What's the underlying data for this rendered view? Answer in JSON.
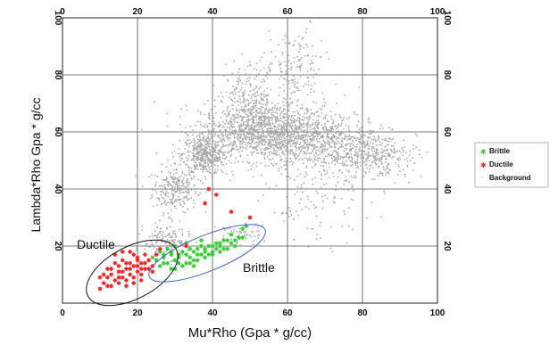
{
  "chart_data": {
    "type": "scatter",
    "xlabel": "Mu*Rho (Gpa * g/cc)",
    "ylabel": "Lambda*Rho Gpa * g/cc",
    "xlim": [
      0,
      100
    ],
    "ylim": [
      0,
      100
    ],
    "x_ticks": [
      "0",
      "20",
      "40",
      "60",
      "80",
      "100"
    ],
    "y_ticks": [
      "20",
      "40",
      "60",
      "80",
      "100"
    ],
    "grid": true,
    "legend_position": "right",
    "colors": {
      "Brittle": "#33cc33",
      "Ductile": "#ee2222",
      "Background": "#aaaaaa"
    },
    "series": [
      {
        "name": "Background",
        "regions": [
          {
            "description_values": [
              30,
              40,
              3.0,
              4.0,
              250
            ]
          },
          {
            "description_values": [
              38,
              52,
              3.0,
              3.5,
              450
            ]
          },
          {
            "description_values": [
              55,
              60,
              9.0,
              5.0,
              1400
            ]
          },
          {
            "description_values": [
              72,
              55,
              9.0,
              5.0,
              600
            ]
          },
          {
            "description_values": [
              84,
              50,
              5.0,
              4.0,
              200
            ]
          },
          {
            "description_values": [
              50,
              72,
              4.0,
              6.0,
              250
            ]
          },
          {
            "description_values": [
              62,
              82,
              4.0,
              7.0,
              150
            ]
          },
          {
            "description_values": [
              28,
              22,
              3.0,
              3.0,
              150
            ]
          },
          {
            "description_values": [
              47,
              24,
              3.0,
              2.0,
              60
            ]
          },
          {
            "description_values": [
              68,
              35,
              7.0,
              7.0,
              120
            ]
          }
        ],
        "sample_points": [
          [
            46,
            66
          ],
          [
            55,
            60
          ],
          [
            60,
            62
          ],
          [
            70,
            56
          ],
          [
            80,
            50
          ],
          [
            40,
            48
          ],
          [
            45,
            52
          ],
          [
            35,
            36
          ],
          [
            62,
            92
          ],
          [
            66,
            99
          ]
        ]
      },
      {
        "name": "Brittle",
        "points": [
          [
            25,
            15
          ],
          [
            27,
            16
          ],
          [
            28,
            14
          ],
          [
            29,
            17
          ],
          [
            30,
            15
          ],
          [
            31,
            16
          ],
          [
            32,
            18
          ],
          [
            33,
            17
          ],
          [
            34,
            16
          ],
          [
            35,
            18
          ],
          [
            36,
            19
          ],
          [
            37,
            17
          ],
          [
            38,
            19
          ],
          [
            39,
            20
          ],
          [
            40,
            18
          ],
          [
            41,
            21
          ],
          [
            42,
            20
          ],
          [
            43,
            19
          ],
          [
            44,
            22
          ],
          [
            45,
            21
          ],
          [
            46,
            22
          ],
          [
            47,
            23
          ],
          [
            48,
            26
          ],
          [
            49,
            27
          ],
          [
            30,
            12
          ],
          [
            32,
            13
          ],
          [
            34,
            14
          ],
          [
            36,
            15
          ],
          [
            38,
            16
          ],
          [
            40,
            17
          ],
          [
            42,
            18
          ],
          [
            44,
            19
          ],
          [
            26,
            18
          ],
          [
            28,
            19
          ],
          [
            30,
            20
          ],
          [
            33,
            21
          ],
          [
            26,
            13
          ],
          [
            29,
            12
          ],
          [
            31,
            14
          ],
          [
            35,
            15
          ],
          [
            37,
            20
          ],
          [
            39,
            17
          ],
          [
            41,
            19
          ],
          [
            43,
            22
          ],
          [
            45,
            24
          ],
          [
            24,
            16
          ],
          [
            27,
            17
          ],
          [
            31,
            17
          ],
          [
            34,
            19
          ],
          [
            36,
            17
          ],
          [
            38,
            18
          ],
          [
            40,
            20
          ],
          [
            42,
            21
          ],
          [
            46,
            20
          ],
          [
            48,
            23
          ],
          [
            33,
            14
          ],
          [
            29,
            18
          ],
          [
            27,
            14
          ],
          [
            35,
            13
          ],
          [
            37,
            22
          ]
        ]
      },
      {
        "name": "Ductile",
        "points": [
          [
            10,
            5
          ],
          [
            11,
            7
          ],
          [
            12,
            9
          ],
          [
            13,
            10
          ],
          [
            14,
            8
          ],
          [
            15,
            11
          ],
          [
            16,
            9
          ],
          [
            17,
            12
          ],
          [
            18,
            10
          ],
          [
            19,
            13
          ],
          [
            20,
            11
          ],
          [
            21,
            14
          ],
          [
            22,
            12
          ],
          [
            23,
            15
          ],
          [
            13,
            6
          ],
          [
            15,
            7
          ],
          [
            17,
            8
          ],
          [
            19,
            9
          ],
          [
            21,
            10
          ],
          [
            12,
            12
          ],
          [
            14,
            14
          ],
          [
            16,
            15
          ],
          [
            18,
            14
          ],
          [
            20,
            16
          ],
          [
            22,
            17
          ],
          [
            24,
            13
          ],
          [
            11,
            10
          ],
          [
            13,
            12
          ],
          [
            15,
            13
          ],
          [
            17,
            6
          ],
          [
            19,
            7
          ],
          [
            21,
            8
          ],
          [
            14,
            17
          ],
          [
            16,
            18
          ],
          [
            18,
            18
          ],
          [
            20,
            15
          ],
          [
            22,
            14
          ],
          [
            12,
            6
          ],
          [
            16,
            11
          ],
          [
            18,
            12
          ],
          [
            20,
            13
          ],
          [
            23,
            12
          ],
          [
            25,
            17
          ],
          [
            26,
            19
          ],
          [
            10,
            9
          ],
          [
            15,
            9
          ],
          [
            17,
            14
          ],
          [
            19,
            17
          ],
          [
            21,
            12
          ],
          [
            24,
            11
          ],
          [
            33,
            20
          ],
          [
            38,
            35
          ],
          [
            39,
            40
          ],
          [
            41,
            38
          ],
          [
            50,
            30
          ],
          [
            45,
            32
          ]
        ]
      }
    ],
    "annotations": [
      {
        "text": "Ductile",
        "x": 10,
        "y": 24
      },
      {
        "text": "Brittle",
        "x": 48,
        "y": 12
      }
    ]
  }
}
